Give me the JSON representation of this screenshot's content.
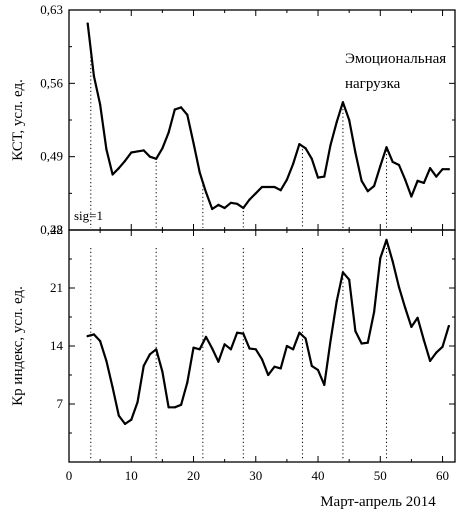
{
  "chart_data": [
    {
      "type": "line",
      "panel": "top",
      "ylabel": "КСТ, усл. ед.",
      "ylim": [
        0.42,
        0.63
      ],
      "yticks": [
        0.42,
        0.49,
        0.56,
        0.63
      ],
      "ytick_labels": [
        "0,42",
        "0,49",
        "0,56",
        "0,63"
      ],
      "xlim": [
        0,
        62
      ],
      "annotations": [
        {
          "text": "Эмоциональная",
          "position": "top-right"
        },
        {
          "text": "нагрузка",
          "position": "top-right"
        },
        {
          "text": "sig=1",
          "position": "bottom-left"
        }
      ],
      "x": [
        3,
        4,
        5,
        6,
        7,
        8,
        9,
        10,
        11,
        12,
        13,
        14,
        15,
        16,
        17,
        18,
        19,
        20,
        21,
        22,
        23,
        24,
        25,
        26,
        27,
        28,
        29,
        30,
        31,
        32,
        33,
        34,
        35,
        36,
        37,
        38,
        39,
        40,
        41,
        42,
        43,
        44,
        45,
        46,
        47,
        48,
        49,
        50,
        51,
        52,
        53,
        54,
        55,
        56,
        57,
        58,
        59,
        60,
        61
      ],
      "y": [
        0.617,
        0.567,
        0.54,
        0.497,
        0.473,
        0.479,
        0.486,
        0.494,
        0.495,
        0.496,
        0.49,
        0.488,
        0.498,
        0.513,
        0.535,
        0.537,
        0.53,
        0.503,
        0.475,
        0.456,
        0.44,
        0.444,
        0.441,
        0.446,
        0.445,
        0.441,
        0.449,
        0.455,
        0.461,
        0.461,
        0.461,
        0.458,
        0.468,
        0.483,
        0.502,
        0.498,
        0.488,
        0.47,
        0.471,
        0.501,
        0.523,
        0.542,
        0.525,
        0.494,
        0.467,
        0.457,
        0.462,
        0.481,
        0.499,
        0.485,
        0.482,
        0.468,
        0.452,
        0.467,
        0.465,
        0.479,
        0.471,
        0.478,
        0.478
      ]
    },
    {
      "type": "line",
      "panel": "bottom",
      "ylabel": "Кр индекс, усл. ед.",
      "xlabel": "Март-апрель 2014",
      "ylim": [
        0,
        28
      ],
      "yticks": [
        7,
        14,
        21,
        28
      ],
      "ytick_labels": [
        "7",
        "14",
        "21",
        "28"
      ],
      "xlim": [
        0,
        62
      ],
      "xticks": [
        0,
        10,
        20,
        30,
        40,
        50,
        60
      ],
      "xtick_labels": [
        "0",
        "10",
        "20",
        "30",
        "40",
        "50",
        "60"
      ],
      "x": [
        3,
        4,
        5,
        6,
        7,
        8,
        9,
        10,
        11,
        12,
        13,
        14,
        15,
        16,
        17,
        18,
        19,
        20,
        21,
        22,
        23,
        24,
        25,
        26,
        27,
        28,
        29,
        30,
        31,
        32,
        33,
        34,
        35,
        36,
        37,
        38,
        39,
        40,
        41,
        42,
        43,
        44,
        45,
        46,
        47,
        48,
        49,
        50,
        51,
        52,
        53,
        54,
        55,
        56,
        57,
        58,
        59,
        60,
        61
      ],
      "y": [
        15.2,
        15.4,
        14.6,
        12.2,
        9.0,
        5.6,
        4.6,
        5.1,
        7.2,
        11.6,
        13.0,
        13.6,
        10.9,
        6.6,
        6.6,
        6.9,
        9.6,
        13.8,
        13.6,
        15.1,
        13.7,
        12.1,
        14.2,
        13.6,
        15.6,
        15.5,
        13.7,
        13.6,
        12.4,
        10.5,
        11.5,
        11.3,
        14.0,
        13.6,
        15.6,
        14.9,
        11.6,
        11.1,
        9.3,
        14.6,
        19.4,
        22.9,
        22.0,
        15.8,
        14.3,
        14.4,
        18.1,
        24.6,
        26.8,
        24.2,
        21.1,
        18.6,
        16.3,
        17.4,
        14.7,
        12.2,
        13.2,
        13.9,
        16.4
      ]
    }
  ],
  "marker_x": [
    3.5,
    14,
    21.5,
    28,
    37.5,
    44,
    51
  ]
}
